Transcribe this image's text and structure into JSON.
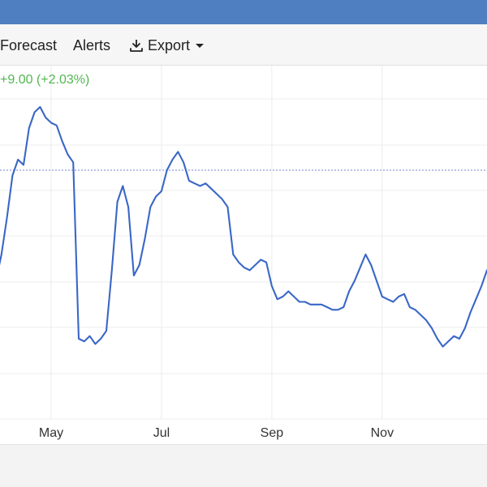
{
  "menu": {
    "forecast_label": "Forecast",
    "alerts_label": "Alerts",
    "export_label": "Export"
  },
  "icons": {
    "export": "download-icon",
    "dropdown": "caret-down-icon"
  },
  "summary": {
    "change_text": "+9.00 (+2.03%)",
    "change_color": "#51b84f"
  },
  "colors": {
    "header": "#4f7ec1",
    "line": "#3a67c6",
    "reference_line": "#6d86d6"
  },
  "chart_data": {
    "type": "line",
    "x_ticks": [
      {
        "label": "May",
        "month": 5
      },
      {
        "label": "Jul",
        "month": 7
      },
      {
        "label": "Sep",
        "month": 9
      },
      {
        "label": "Nov",
        "month": 11
      }
    ],
    "reference_line_value": 4.2,
    "grid": true,
    "series": [
      {
        "x": [
          4.0,
          4.1,
          4.2,
          4.3,
          4.4,
          4.5,
          4.6,
          4.7,
          4.8,
          4.9,
          5.0,
          5.1,
          5.2,
          5.3,
          5.4,
          5.5,
          5.6,
          5.7,
          5.8,
          5.9,
          6.0,
          6.1,
          6.2,
          6.3,
          6.4,
          6.5,
          6.6,
          6.7,
          6.8,
          6.9,
          7.0,
          7.1,
          7.2,
          7.3,
          7.4,
          7.5,
          7.6,
          7.7,
          7.8,
          7.9,
          8.0,
          8.1,
          8.2,
          8.3,
          8.4,
          8.5,
          8.6,
          8.7,
          8.8,
          8.9,
          9.0,
          9.1,
          9.2,
          9.3,
          9.4,
          9.5,
          9.6,
          9.7,
          9.8,
          9.9,
          10.0,
          10.1,
          10.2,
          10.3,
          10.4,
          10.5,
          10.6,
          10.7,
          10.8,
          10.9,
          11.0,
          11.1,
          11.2,
          11.3,
          11.4,
          11.5,
          11.6,
          11.7,
          11.8,
          11.9,
          12.0,
          12.1,
          12.2,
          12.3,
          12.4,
          12.5,
          12.6,
          12.7,
          12.8,
          12.9
        ],
        "y": [
          2.1,
          2.6,
          3.3,
          4.1,
          4.4,
          4.3,
          5.0,
          5.3,
          5.4,
          5.2,
          5.1,
          5.05,
          4.75,
          4.5,
          4.35,
          1.0,
          0.95,
          1.05,
          0.9,
          1.0,
          1.15,
          2.3,
          3.6,
          3.9,
          3.5,
          2.2,
          2.4,
          2.9,
          3.5,
          3.7,
          3.8,
          4.2,
          4.4,
          4.55,
          4.35,
          4.0,
          3.95,
          3.9,
          3.95,
          3.85,
          3.75,
          3.65,
          3.5,
          2.6,
          2.45,
          2.35,
          2.3,
          2.4,
          2.5,
          2.45,
          2.0,
          1.75,
          1.8,
          1.9,
          1.8,
          1.7,
          1.7,
          1.65,
          1.65,
          1.65,
          1.6,
          1.55,
          1.55,
          1.6,
          1.9,
          2.1,
          2.35,
          2.6,
          2.4,
          2.1,
          1.8,
          1.75,
          1.7,
          1.8,
          1.85,
          1.6,
          1.55,
          1.45,
          1.35,
          1.2,
          1.0,
          0.85,
          0.95,
          1.05,
          1.0,
          1.2,
          1.5,
          1.75,
          2.0,
          2.3
        ]
      }
    ]
  }
}
